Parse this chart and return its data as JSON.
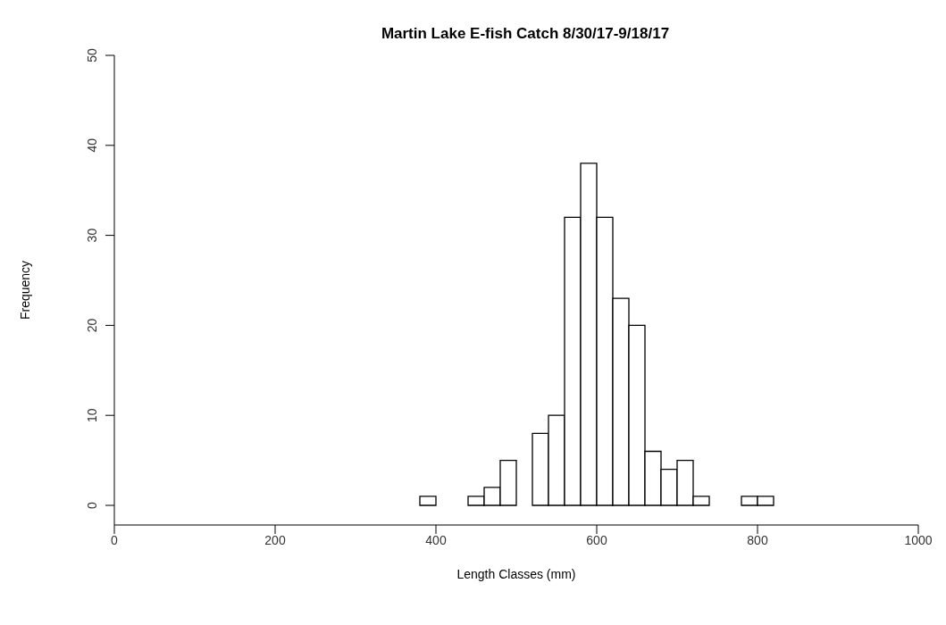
{
  "chart_data": {
    "type": "histogram",
    "title": "Martin Lake E-fish Catch 8/30/17-9/18/17",
    "xlabel": "Length Classes (mm)",
    "ylabel": "Frequency",
    "bins": [
      380,
      400,
      420,
      440,
      460,
      480,
      500,
      520,
      540,
      560,
      580,
      600,
      620,
      640,
      660,
      680,
      700,
      720,
      740,
      760,
      780,
      800,
      820
    ],
    "values": [
      1,
      0,
      0,
      1,
      2,
      5,
      0,
      8,
      10,
      32,
      38,
      32,
      23,
      20,
      6,
      4,
      5,
      1,
      0,
      0,
      1,
      1
    ],
    "color": "#ffffff",
    "xlim": [
      0,
      1000
    ],
    "xticks": [
      0,
      200,
      400,
      600,
      800,
      1000
    ],
    "ylim": [
      0,
      50
    ],
    "yticks": [
      0,
      10,
      20,
      30,
      40,
      50
    ],
    "grid": false
  }
}
